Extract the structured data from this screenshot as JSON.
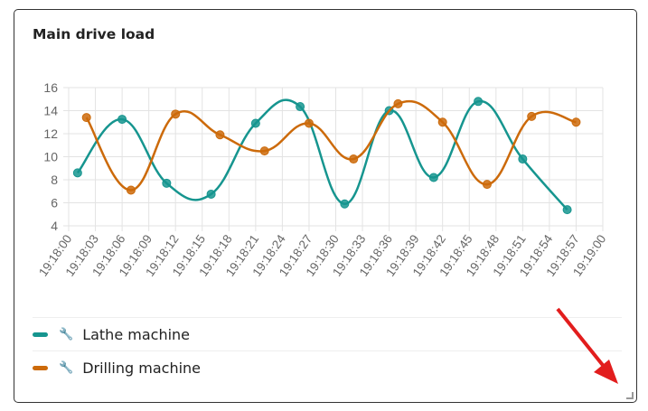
{
  "card": {
    "title": "Main drive load"
  },
  "chart_data": {
    "type": "line",
    "title": "Main drive load",
    "x_ticks": [
      "19:18:00",
      "19:18:03",
      "19:18:06",
      "19:18:09",
      "19:18:12",
      "19:18:15",
      "19:18:18",
      "19:18:21",
      "19:18:24",
      "19:18:27",
      "19:18:30",
      "19:18:33",
      "19:18:36",
      "19:18:39",
      "19:18:42",
      "19:18:45",
      "19:18:48",
      "19:18:51",
      "19:18:54",
      "19:18:57",
      "19:19:00"
    ],
    "xlim_seconds": [
      0,
      60
    ],
    "ylim": [
      4,
      16
    ],
    "y_ticks": [
      4,
      6,
      8,
      10,
      12,
      14,
      16
    ],
    "grid": true,
    "legend_position": "bottom",
    "series": [
      {
        "name": "Lathe machine",
        "color": "#16958f",
        "icon": "wrench-icon",
        "x": [
          1,
          6,
          11,
          16,
          21,
          26,
          31,
          36,
          41,
          46,
          51,
          56
        ],
        "values": [
          8.6,
          13.25,
          7.7,
          6.75,
          12.9,
          14.35,
          5.9,
          14,
          8.2,
          14.8,
          9.8,
          5.4
        ]
      },
      {
        "name": "Drilling machine",
        "color": "#cc6a0a",
        "icon": "wrench-icon",
        "x": [
          2,
          7,
          12,
          17,
          22,
          27,
          32,
          37,
          42,
          47,
          52,
          57
        ],
        "values": [
          13.4,
          7.1,
          13.7,
          11.9,
          10.5,
          12.9,
          9.8,
          14.6,
          13,
          7.6,
          13.5,
          13
        ]
      }
    ]
  }
}
